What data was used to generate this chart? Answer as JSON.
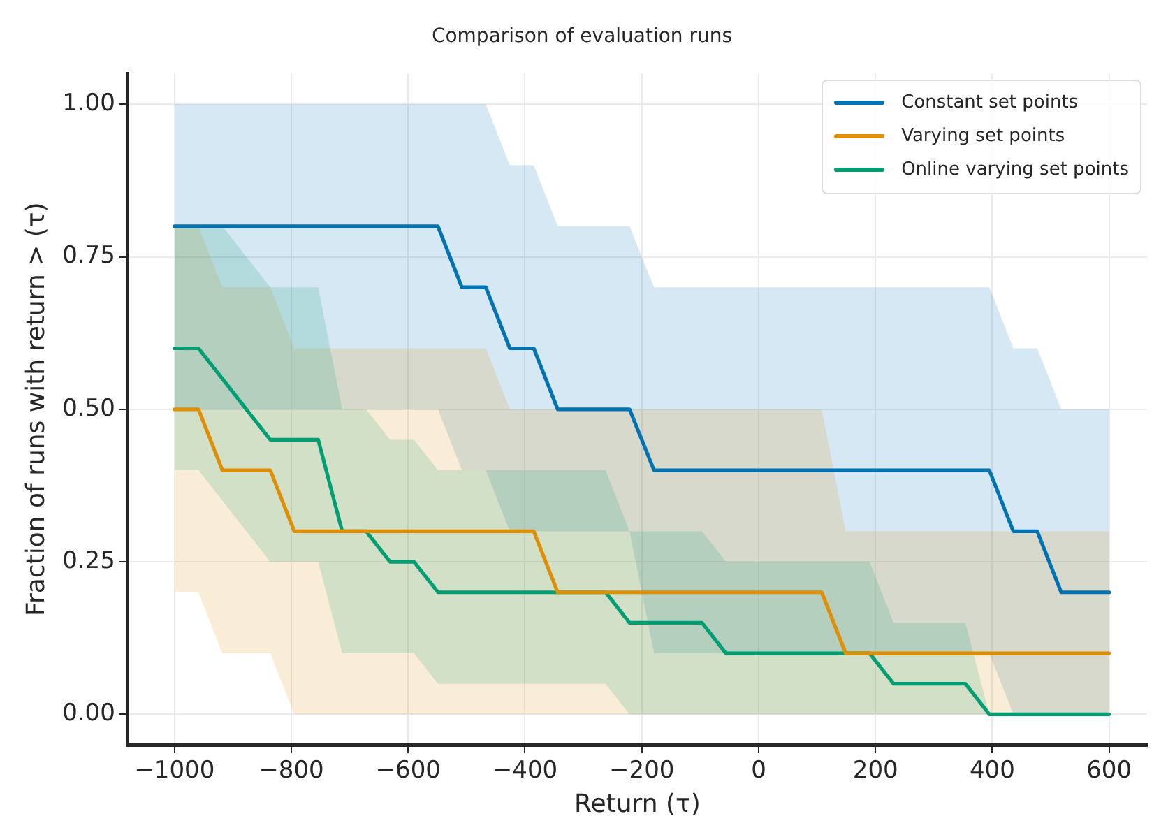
{
  "chart_data": {
    "type": "line",
    "title": "Comparison of evaluation runs",
    "xlabel": "Return (τ)",
    "ylabel": "Fraction of runs with return > (τ)",
    "x": [
      -1000,
      -959,
      -918,
      -877,
      -836,
      -795,
      -754,
      -713,
      -672,
      -631,
      -590,
      -549,
      -508,
      -467,
      -426,
      -385,
      -344,
      -303,
      -262,
      -221,
      -179,
      -138,
      -97,
      -56,
      -15,
      26,
      67,
      108,
      149,
      190,
      231,
      272,
      313,
      354,
      395,
      436,
      477,
      518,
      559,
      600
    ],
    "series": [
      {
        "name": "Constant set points",
        "color": "#0173b2",
        "values": [
          0.8,
          0.8,
          0.8,
          0.8,
          0.8,
          0.8,
          0.8,
          0.8,
          0.8,
          0.8,
          0.8,
          0.8,
          0.7,
          0.7,
          0.6,
          0.6,
          0.5,
          0.5,
          0.5,
          0.5,
          0.4,
          0.4,
          0.4,
          0.4,
          0.4,
          0.4,
          0.4,
          0.4,
          0.4,
          0.4,
          0.4,
          0.4,
          0.4,
          0.4,
          0.4,
          0.3,
          0.3,
          0.2,
          0.2,
          0.2
        ],
        "lower": [
          0.5,
          0.5,
          0.5,
          0.5,
          0.5,
          0.5,
          0.5,
          0.5,
          0.5,
          0.5,
          0.5,
          0.5,
          0.4,
          0.4,
          0.3,
          0.3,
          0.3,
          0.3,
          0.3,
          0.3,
          0.1,
          0.1,
          0.1,
          0.1,
          0.1,
          0.1,
          0.1,
          0.1,
          0.1,
          0.1,
          0.1,
          0.1,
          0.1,
          0.1,
          0.1,
          0,
          0,
          0,
          0,
          0
        ],
        "upper": [
          1,
          1,
          1,
          1,
          1,
          1,
          1,
          1,
          1,
          1,
          1,
          1,
          1,
          1,
          0.9,
          0.9,
          0.8,
          0.8,
          0.8,
          0.8,
          0.7,
          0.7,
          0.7,
          0.7,
          0.7,
          0.7,
          0.7,
          0.7,
          0.7,
          0.7,
          0.7,
          0.7,
          0.7,
          0.7,
          0.7,
          0.6,
          0.6,
          0.5,
          0.5,
          0.5
        ]
      },
      {
        "name": "Varying set points",
        "color": "#de8f05",
        "values": [
          0.5,
          0.5,
          0.4,
          0.4,
          0.4,
          0.3,
          0.3,
          0.3,
          0.3,
          0.3,
          0.3,
          0.3,
          0.3,
          0.3,
          0.3,
          0.3,
          0.2,
          0.2,
          0.2,
          0.2,
          0.2,
          0.2,
          0.2,
          0.2,
          0.2,
          0.2,
          0.2,
          0.2,
          0.1,
          0.1,
          0.1,
          0.1,
          0.1,
          0.1,
          0.1,
          0.1,
          0.1,
          0.1,
          0.1,
          0.1
        ],
        "lower": [
          0.2,
          0.2,
          0.1,
          0.1,
          0.1,
          0,
          0,
          0,
          0,
          0,
          0,
          0,
          0,
          0,
          0,
          0,
          0,
          0,
          0,
          0,
          0,
          0,
          0,
          0,
          0,
          0,
          0,
          0,
          0,
          0,
          0,
          0,
          0,
          0,
          0,
          0,
          0,
          0,
          0,
          0
        ],
        "upper": [
          0.8,
          0.8,
          0.7,
          0.7,
          0.7,
          0.6,
          0.6,
          0.6,
          0.6,
          0.6,
          0.6,
          0.6,
          0.6,
          0.6,
          0.5,
          0.5,
          0.5,
          0.5,
          0.5,
          0.5,
          0.5,
          0.5,
          0.5,
          0.5,
          0.5,
          0.5,
          0.5,
          0.5,
          0.3,
          0.3,
          0.3,
          0.3,
          0.3,
          0.3,
          0.3,
          0.3,
          0.3,
          0.3,
          0.3,
          0.3
        ]
      },
      {
        "name": "Online varying set points",
        "color": "#029e73",
        "values": [
          0.6,
          0.6,
          0.55,
          0.5,
          0.45,
          0.45,
          0.45,
          0.3,
          0.3,
          0.25,
          0.25,
          0.2,
          0.2,
          0.2,
          0.2,
          0.2,
          0.2,
          0.2,
          0.2,
          0.15,
          0.15,
          0.15,
          0.15,
          0.1,
          0.1,
          0.1,
          0.1,
          0.1,
          0.1,
          0.1,
          0.05,
          0.05,
          0.05,
          0.05,
          0,
          0,
          0,
          0,
          0,
          0
        ],
        "lower": [
          0.4,
          0.4,
          0.35,
          0.3,
          0.25,
          0.25,
          0.25,
          0.1,
          0.1,
          0.1,
          0.1,
          0.05,
          0.05,
          0.05,
          0.05,
          0.05,
          0.05,
          0.05,
          0.05,
          0,
          0,
          0,
          0,
          0,
          0,
          0,
          0,
          0,
          0,
          0,
          0,
          0,
          0,
          0,
          0,
          null,
          null,
          null,
          null,
          null
        ],
        "upper": [
          0.8,
          0.8,
          0.8,
          0.75,
          0.7,
          0.7,
          0.7,
          0.5,
          0.5,
          0.45,
          0.45,
          0.4,
          0.4,
          0.4,
          0.4,
          0.4,
          0.4,
          0.4,
          0.4,
          0.3,
          0.3,
          0.3,
          0.3,
          0.25,
          0.25,
          0.25,
          0.25,
          0.25,
          0.25,
          0.25,
          0.15,
          0.15,
          0.15,
          0.15,
          0,
          null,
          null,
          null,
          null,
          null
        ]
      }
    ],
    "xlim": [
      -1080,
      665
    ],
    "ylim": [
      -0.05,
      1.05
    ],
    "xticks": [
      {
        "value": -1000,
        "label": "−1000"
      },
      {
        "value": -800,
        "label": "−800"
      },
      {
        "value": -600,
        "label": "−600"
      },
      {
        "value": -400,
        "label": "−400"
      },
      {
        "value": -200,
        "label": "−200"
      },
      0,
      200,
      400,
      600
    ],
    "yticks": [
      {
        "value": 0,
        "label": "0.00"
      },
      {
        "value": 0.25,
        "label": "0.25"
      },
      {
        "value": 0.5,
        "label": "0.50"
      },
      {
        "value": 0.75,
        "label": "0.75"
      },
      {
        "value": 1,
        "label": "1.00"
      }
    ],
    "grid": true,
    "legend": "top right",
    "marker": "none",
    "line_style": "solid"
  }
}
